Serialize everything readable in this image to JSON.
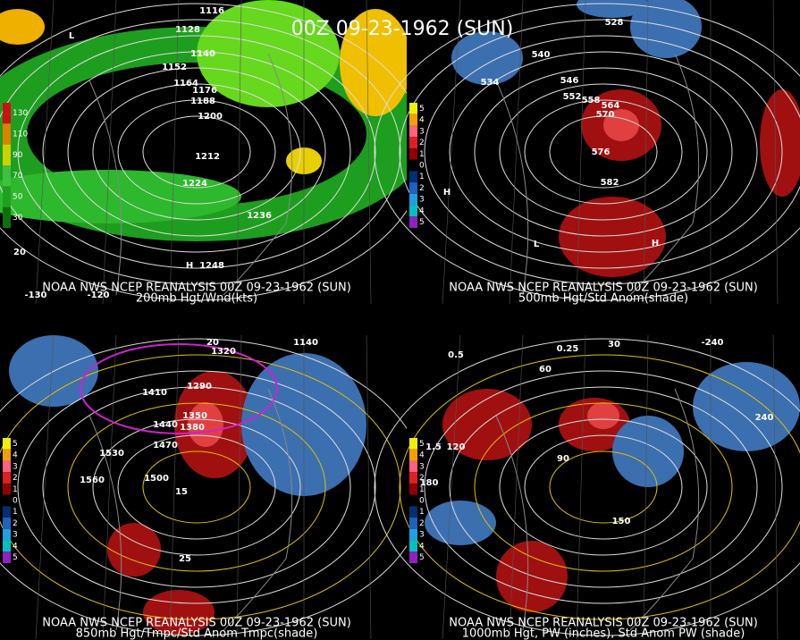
{
  "title": "00Z 09-23-1962 (SUN)",
  "panels": [
    {
      "caption1": "NOAA NWS NCEP REANALYSIS 00Z 09-23-1962 (SUN)",
      "caption2": "200mb Hgt/Wnd(kts)",
      "legend": [
        "130",
        "110",
        "90",
        "70",
        "50",
        "30"
      ],
      "labels": [
        "1116",
        "1128",
        "1140",
        "1152",
        "1164",
        "1176",
        "1188",
        "1200",
        "1212",
        "1224",
        "1236",
        "1248",
        "L",
        "H",
        "-130",
        "-120",
        "20"
      ]
    },
    {
      "caption1": "NOAA NWS NCEP REANALYSIS 00Z 09-23-1962 (SUN)",
      "caption2": "500mb Hgt/Std Anom(shade)",
      "legend": [
        "5",
        "4",
        "3",
        "2",
        "1",
        "0",
        "1",
        "2",
        "3",
        "4",
        "5"
      ],
      "labels": [
        "528",
        "534",
        "540",
        "546",
        "552",
        "558",
        "564",
        "570",
        "576",
        "582",
        "L",
        "H",
        "H"
      ]
    },
    {
      "caption1": "NOAA NWS NCEP REANALYSIS 00Z 09-23-1962 (SUN)",
      "caption2": "850mb Hgt/Tmpc/Std Anom Tmpc(shade)",
      "legend": [
        "5",
        "4",
        "3",
        "2",
        "1",
        "0",
        "1",
        "2",
        "3",
        "4",
        "5"
      ],
      "labels": [
        "1140",
        "1290",
        "1320",
        "1350",
        "1380",
        "1410",
        "1440",
        "1470",
        "1500",
        "1530",
        "1560",
        "15",
        "20",
        "25"
      ]
    },
    {
      "caption1": "NOAA NWS NCEP REANALYSIS 00Z 09-23-1962 (SUN)",
      "caption2": "1000mb Hgt, PW (inches), Std Anom PW (shade)",
      "legend": [
        "5",
        "4",
        "3",
        "2",
        "1",
        "0",
        "1",
        "2",
        "3",
        "4",
        "5"
      ],
      "labels": [
        "0.25",
        "0.5",
        "1.5",
        "30",
        "60",
        "90",
        "120",
        "150",
        "180",
        "240",
        "-240"
      ]
    }
  ]
}
